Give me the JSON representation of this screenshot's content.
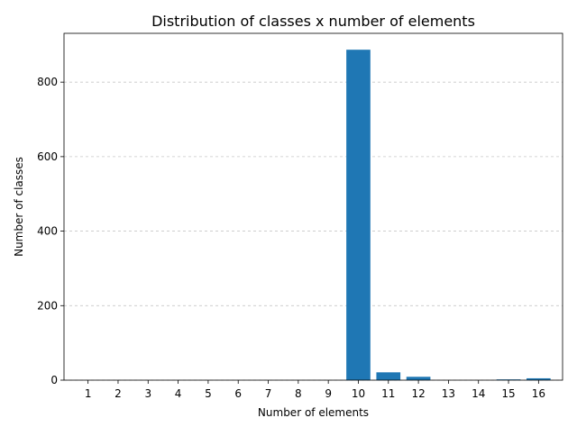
{
  "chart_data": {
    "type": "bar",
    "title": "Distribution of classes x number of elements",
    "xlabel": "Number of elements",
    "ylabel": "Number of classes",
    "categories": [
      "1",
      "2",
      "3",
      "4",
      "5",
      "6",
      "7",
      "8",
      "9",
      "10",
      "11",
      "12",
      "13",
      "14",
      "15",
      "16"
    ],
    "values": [
      0,
      0,
      0,
      0,
      0,
      0,
      0,
      0,
      0,
      887,
      21,
      9,
      0,
      0,
      2,
      5
    ],
    "ylim": [
      0,
      931
    ],
    "yticks": [
      0,
      200,
      400,
      600,
      800
    ],
    "grid": "y-dashed",
    "bar_color": "#1f77b4",
    "grid_color": "#b0b0b0"
  }
}
